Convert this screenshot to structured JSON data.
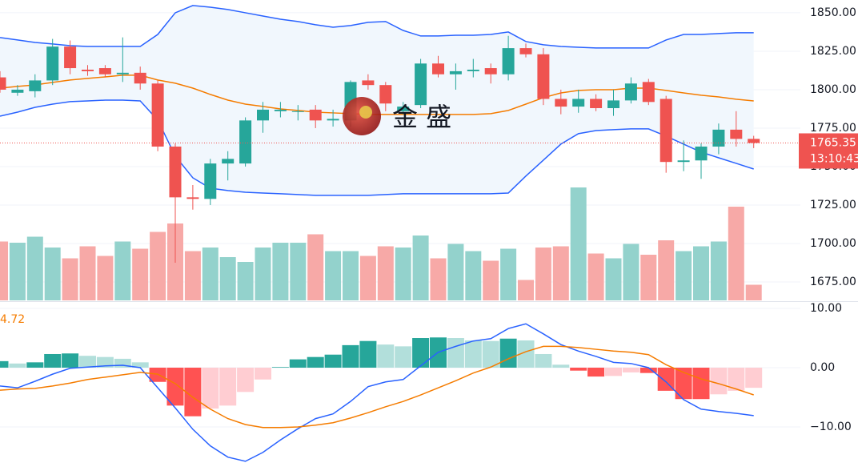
{
  "chart_data": [
    {
      "type": "candlestick",
      "ylim": [
        1663.0,
        1858.3
      ],
      "yticks": [
        {
          "value": 1850,
          "label": "1850.00"
        },
        {
          "value": 1825,
          "label": "1825.00"
        },
        {
          "value": 1800,
          "label": "1800.00"
        },
        {
          "value": 1775,
          "label": "1775.00"
        },
        {
          "value": 1750,
          "label": "1750.00"
        },
        {
          "value": 1725,
          "label": "1725.00"
        },
        {
          "value": 1700,
          "label": "1700.00"
        },
        {
          "value": 1675,
          "label": "1675.00"
        }
      ],
      "open": [
        1808,
        1798,
        1799,
        1806,
        1828,
        1813,
        1814,
        1810,
        1811,
        1804,
        1763,
        1730,
        1729,
        1752,
        1752,
        1780,
        1786,
        1786,
        1787,
        1780,
        1780,
        1806,
        1803,
        1786,
        1790,
        1817,
        1810,
        1812,
        1814,
        1810,
        1827,
        1823,
        1794,
        1789,
        1794,
        1788,
        1793,
        1805,
        1794,
        1753,
        1754,
        1763,
        1774,
        1768
      ],
      "high": [
        1812,
        1803,
        1810,
        1833,
        1832,
        1816,
        1816,
        1834,
        1815,
        1806,
        1765,
        1738,
        1755,
        1760,
        1782,
        1792,
        1792,
        1790,
        1790,
        1787,
        1806,
        1810,
        1805,
        1792,
        1820,
        1822,
        1817,
        1820,
        1817,
        1835,
        1830,
        1827,
        1800,
        1800,
        1797,
        1800,
        1808,
        1807,
        1796,
        1767,
        1765,
        1778,
        1786,
        1770
      ],
      "low": [
        1798,
        1796,
        1795,
        1803,
        1810,
        1809,
        1808,
        1805,
        1800,
        1760,
        1687.5,
        1722,
        1725,
        1741,
        1750,
        1772,
        1782,
        1780,
        1775,
        1776,
        1776,
        1800,
        1786,
        1784,
        1788,
        1808,
        1800,
        1808,
        1804,
        1806,
        1821,
        1790,
        1784,
        1785,
        1786,
        1783,
        1791,
        1790,
        1746,
        1747,
        1742,
        1758,
        1763,
        1762
      ],
      "close": [
        1800,
        1800,
        1806,
        1828,
        1814,
        1812,
        1810,
        1811,
        1804,
        1763,
        1730,
        1729,
        1752,
        1755,
        1780,
        1787,
        1787,
        1786,
        1780,
        1781,
        1805,
        1803,
        1791,
        1789,
        1817,
        1810,
        1812,
        1813,
        1810,
        1827,
        1823,
        1794,
        1789,
        1794,
        1788,
        1793,
        1804,
        1792,
        1753,
        1754,
        1763,
        1774,
        1768,
        1765.35
      ],
      "bb_upper": [
        1833.9,
        1832.3,
        1830.7,
        1829.7,
        1828.6,
        1828.1,
        1828.1,
        1828.1,
        1828.1,
        1835.9,
        1850,
        1854.7,
        1853.6,
        1852.1,
        1850,
        1847.9,
        1845.8,
        1844.3,
        1842.2,
        1840.6,
        1841.7,
        1843.8,
        1844.3,
        1838.5,
        1834.9,
        1834.9,
        1835.4,
        1835.4,
        1835.9,
        1837.5,
        1831.3,
        1829.2,
        1828.1,
        1827.6,
        1827.1,
        1827.1,
        1827.1,
        1827.1,
        1832.3,
        1835.9,
        1835.9,
        1836.5,
        1837.0,
        1837.0
      ],
      "bb_middle": [
        1801.0,
        1802.1,
        1803.1,
        1804.7,
        1806.3,
        1807.3,
        1808.3,
        1809.4,
        1809.4,
        1806.3,
        1804.2,
        1801.0,
        1796.9,
        1793.2,
        1790.6,
        1789.1,
        1787.5,
        1786.5,
        1785.4,
        1784.9,
        1784.4,
        1783.9,
        1783.9,
        1783.9,
        1783.9,
        1783.9,
        1783.9,
        1783.9,
        1784.4,
        1786.5,
        1790.6,
        1794.8,
        1797.9,
        1799.5,
        1800,
        1800,
        1801.0,
        1801.0,
        1799.5,
        1797.9,
        1796.4,
        1795.3,
        1793.8,
        1792.7
      ],
      "bb_lower": [
        1782.8,
        1785.4,
        1788.5,
        1790.6,
        1792.2,
        1792.7,
        1793.2,
        1793.2,
        1792.7,
        1780.2,
        1756.8,
        1742.7,
        1735.9,
        1734.4,
        1733.3,
        1732.8,
        1732.3,
        1731.8,
        1731.3,
        1731.3,
        1731.3,
        1731.3,
        1731.8,
        1732.3,
        1732.3,
        1732.3,
        1732.3,
        1732.3,
        1732.3,
        1732.8,
        1743.8,
        1754.2,
        1764.6,
        1771.4,
        1773.4,
        1774,
        1774.5,
        1774.5,
        1769.8,
        1764.6,
        1759.4,
        1755.7,
        1752.1,
        1748.4
      ],
      "volume": [
        49,
        48,
        53,
        44,
        35,
        45,
        37,
        49,
        43,
        57,
        64,
        41,
        44,
        36,
        32,
        44,
        48,
        48,
        55,
        41,
        41,
        37,
        45,
        44,
        54,
        35,
        47,
        41,
        33,
        43,
        17,
        44,
        45,
        94,
        39,
        35,
        47,
        38,
        50,
        41,
        45,
        49,
        78,
        13
      ],
      "volume_lim": [
        0,
        100
      ],
      "last_price": 1765.35,
      "countdown": "13:10:43",
      "watermark": "金 盛",
      "colors": {
        "up": "#26a69a",
        "down": "#ef5350",
        "volume_up": "#93d2cc",
        "volume_down": "#f7a9a7",
        "bb_band": "#2962ff",
        "bb_middle": "#f57c00",
        "band_fill": "#f1f7fd"
      },
      "grid": true
    },
    {
      "type": "macd",
      "ylim": [
        -16.9,
        10.95
      ],
      "yticks": [
        {
          "value": 10,
          "label": "10.00"
        },
        {
          "value": 0,
          "label": "0.00"
        },
        {
          "value": -10,
          "label": "−10.00"
        }
      ],
      "indicator_label": "4.72",
      "histogram": [
        1.1,
        0.7,
        0.9,
        2.3,
        2.4,
        2.0,
        1.8,
        1.5,
        0.9,
        -2.4,
        -6.4,
        -8.2,
        -6.9,
        -6.4,
        -4.1,
        -2.0,
        0.1,
        1.4,
        1.8,
        2.2,
        3.8,
        4.5,
        3.9,
        3.6,
        5.0,
        5.1,
        5.0,
        4.6,
        4.5,
        4.9,
        4.6,
        2.3,
        0.5,
        -0.5,
        -1.5,
        -1.4,
        -0.8,
        -0.9,
        -3.9,
        -5.3,
        -5.3,
        -4.5,
        -3.9,
        -3.4
      ],
      "macd": [
        -3.1,
        -3.4,
        -2.3,
        -1.1,
        -0.1,
        0.1,
        0.3,
        0.4,
        0,
        -3.4,
        -6.8,
        -10.4,
        -13.2,
        -15.1,
        -15.8,
        -14.3,
        -12.2,
        -10.3,
        -8.6,
        -7.8,
        -5.7,
        -3.2,
        -2.4,
        -2.0,
        0.3,
        2.6,
        3.6,
        4.5,
        4.9,
        6.6,
        7.4,
        5.7,
        3.9,
        2.8,
        1.9,
        0.9,
        0.7,
        0,
        -2.4,
        -5.4,
        -7.0,
        -7.4,
        -7.7,
        -8.1
      ],
      "signal": [
        -3.8,
        -3.6,
        -3.5,
        -3.1,
        -2.6,
        -2.0,
        -1.6,
        -1.2,
        -0.8,
        -1.1,
        -2.7,
        -5.0,
        -7.0,
        -8.6,
        -9.6,
        -10.1,
        -10.1,
        -10.0,
        -9.7,
        -9.3,
        -8.5,
        -7.6,
        -6.6,
        -5.7,
        -4.6,
        -3.4,
        -2.2,
        -0.9,
        0.1,
        1.5,
        2.7,
        3.6,
        3.6,
        3.4,
        3.1,
        2.8,
        2.6,
        2.2,
        0.5,
        -0.8,
        -1.9,
        -2.7,
        -3.6,
        -4.6
      ],
      "colors": {
        "pos_rise": "#26a69a",
        "pos_fall": "#b2dfdb",
        "neg_fall": "#ff5252",
        "neg_rise": "#ffcdd2",
        "macd": "#2962ff",
        "signal": "#f57c00",
        "label": "#f57c00"
      }
    }
  ]
}
